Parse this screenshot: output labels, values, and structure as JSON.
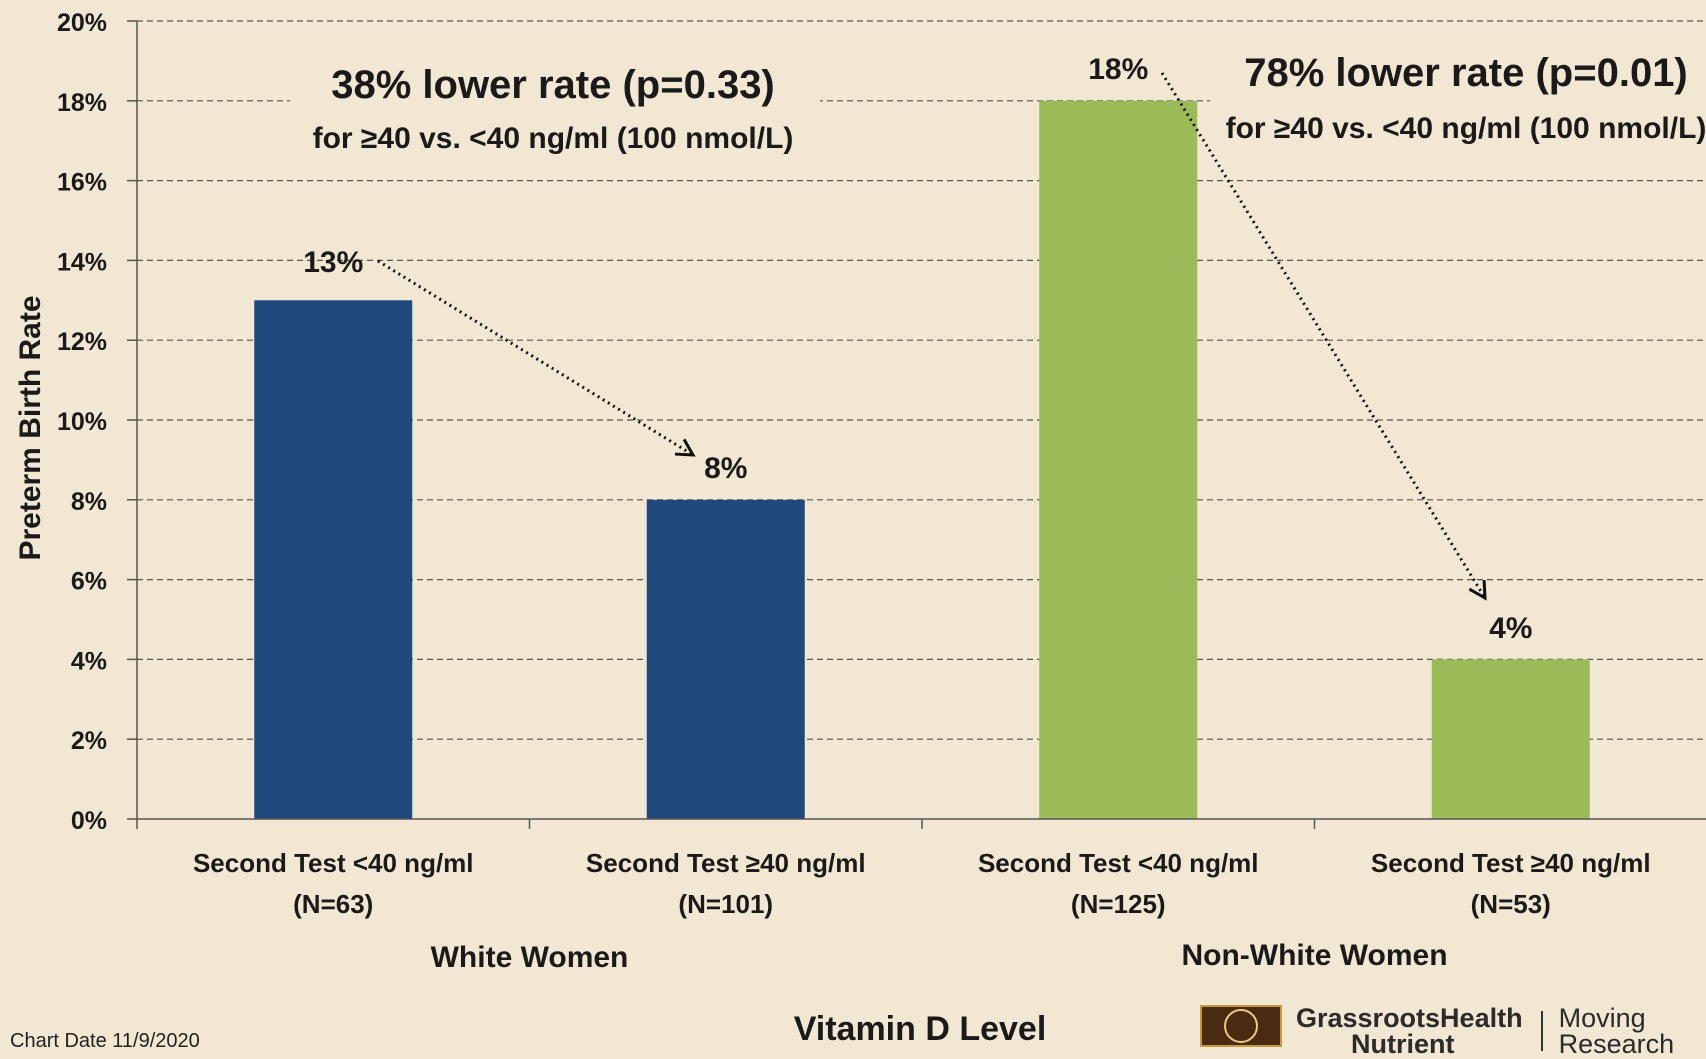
{
  "chart_data": {
    "type": "bar",
    "ylabel": "Preterm Birth Rate",
    "xlabel": "Vitamin D Level",
    "ylim": [
      0,
      20
    ],
    "y_ticks": [
      "0%",
      "2%",
      "4%",
      "6%",
      "8%",
      "10%",
      "12%",
      "14%",
      "16%",
      "18%",
      "20%"
    ],
    "grid": true,
    "categories": [
      {
        "line1": "Second Test <40 ng/ml",
        "line2": "(N=63)"
      },
      {
        "line1": "Second Test ≥40 ng/ml",
        "line2": "(N=101)"
      },
      {
        "line1": "Second Test <40 ng/ml",
        "line2": "(N=125)"
      },
      {
        "line1": "Second Test ≥40 ng/ml",
        "line2": "(N=53)"
      }
    ],
    "values": [
      13,
      8,
      18,
      4
    ],
    "value_labels": [
      "13%",
      "8%",
      "18%",
      "4%"
    ],
    "bar_colors": [
      "#1f497d",
      "#1f497d",
      "#9bbb59",
      "#9bbb59"
    ],
    "groups": [
      "White Women",
      "Non-White Women"
    ],
    "annotations": [
      {
        "title": "38% lower rate (p=0.33)",
        "subtitle": "for ≥40 vs. <40 ng/ml (100 nmol/L)"
      },
      {
        "title": "78% lower rate (p=0.01)",
        "subtitle": "for ≥40 vs. <40 ng/ml (100 nmol/L)"
      }
    ]
  },
  "footer": {
    "chart_date": "Chart Date 11/9/2020",
    "logo_name": "GrassrootsHealth",
    "logo_sub": "Nutrient",
    "logo_tag1": "Moving",
    "logo_tag2": "Research"
  },
  "colors": {
    "background": "#f2e7d2",
    "axis": "#555555",
    "text": "#1a1a1a"
  }
}
